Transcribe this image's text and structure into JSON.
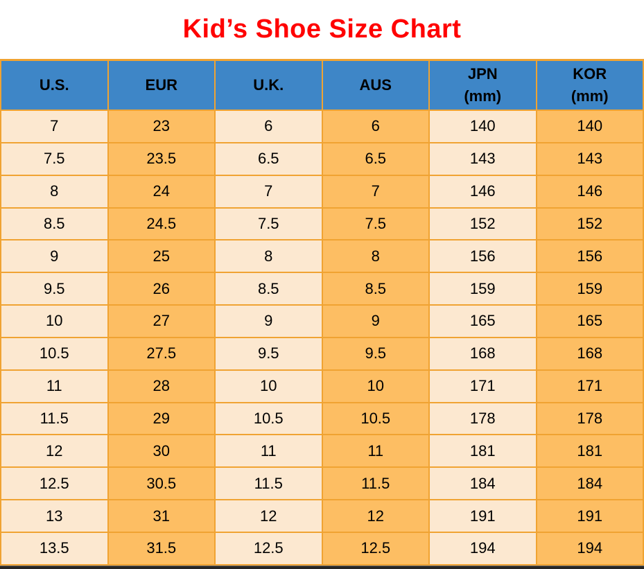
{
  "title": "Kid’s Shoe Size Chart",
  "colors": {
    "title_red": "#ff0000",
    "header_blue": "#3e86c7",
    "col_cream": "#fce8d0",
    "col_orange": "#fdbe63",
    "grid_orange": "#f0a332",
    "bottom_bar": "#262626"
  },
  "chart_data": {
    "type": "table",
    "title": "Kid’s Shoe Size Chart",
    "columns": [
      "U.S.",
      "EUR",
      "U.K.",
      "AUS",
      "JPN (mm)",
      "KOR (mm)"
    ],
    "header_lines": [
      [
        "U.S."
      ],
      [
        "EUR"
      ],
      [
        "U.K."
      ],
      [
        "AUS"
      ],
      [
        "JPN",
        "(mm)"
      ],
      [
        "KOR",
        "(mm)"
      ]
    ],
    "column_fills": [
      "cream",
      "orange",
      "cream",
      "orange",
      "cream",
      "orange"
    ],
    "rows": [
      [
        "7",
        "23",
        "6",
        "6",
        "140",
        "140"
      ],
      [
        "7.5",
        "23.5",
        "6.5",
        "6.5",
        "143",
        "143"
      ],
      [
        "8",
        "24",
        "7",
        "7",
        "146",
        "146"
      ],
      [
        "8.5",
        "24.5",
        "7.5",
        "7.5",
        "152",
        "152"
      ],
      [
        "9",
        "25",
        "8",
        "8",
        "156",
        "156"
      ],
      [
        "9.5",
        "26",
        "8.5",
        "8.5",
        "159",
        "159"
      ],
      [
        "10",
        "27",
        "9",
        "9",
        "165",
        "165"
      ],
      [
        "10.5",
        "27.5",
        "9.5",
        "9.5",
        "168",
        "168"
      ],
      [
        "11",
        "28",
        "10",
        "10",
        "171",
        "171"
      ],
      [
        "11.5",
        "29",
        "10.5",
        "10.5",
        "178",
        "178"
      ],
      [
        "12",
        "30",
        "11",
        "11",
        "181",
        "181"
      ],
      [
        "12.5",
        "30.5",
        "11.5",
        "11.5",
        "184",
        "184"
      ],
      [
        "13",
        "31",
        "12",
        "12",
        "191",
        "191"
      ],
      [
        "13.5",
        "31.5",
        "12.5",
        "12.5",
        "194",
        "194"
      ]
    ]
  }
}
